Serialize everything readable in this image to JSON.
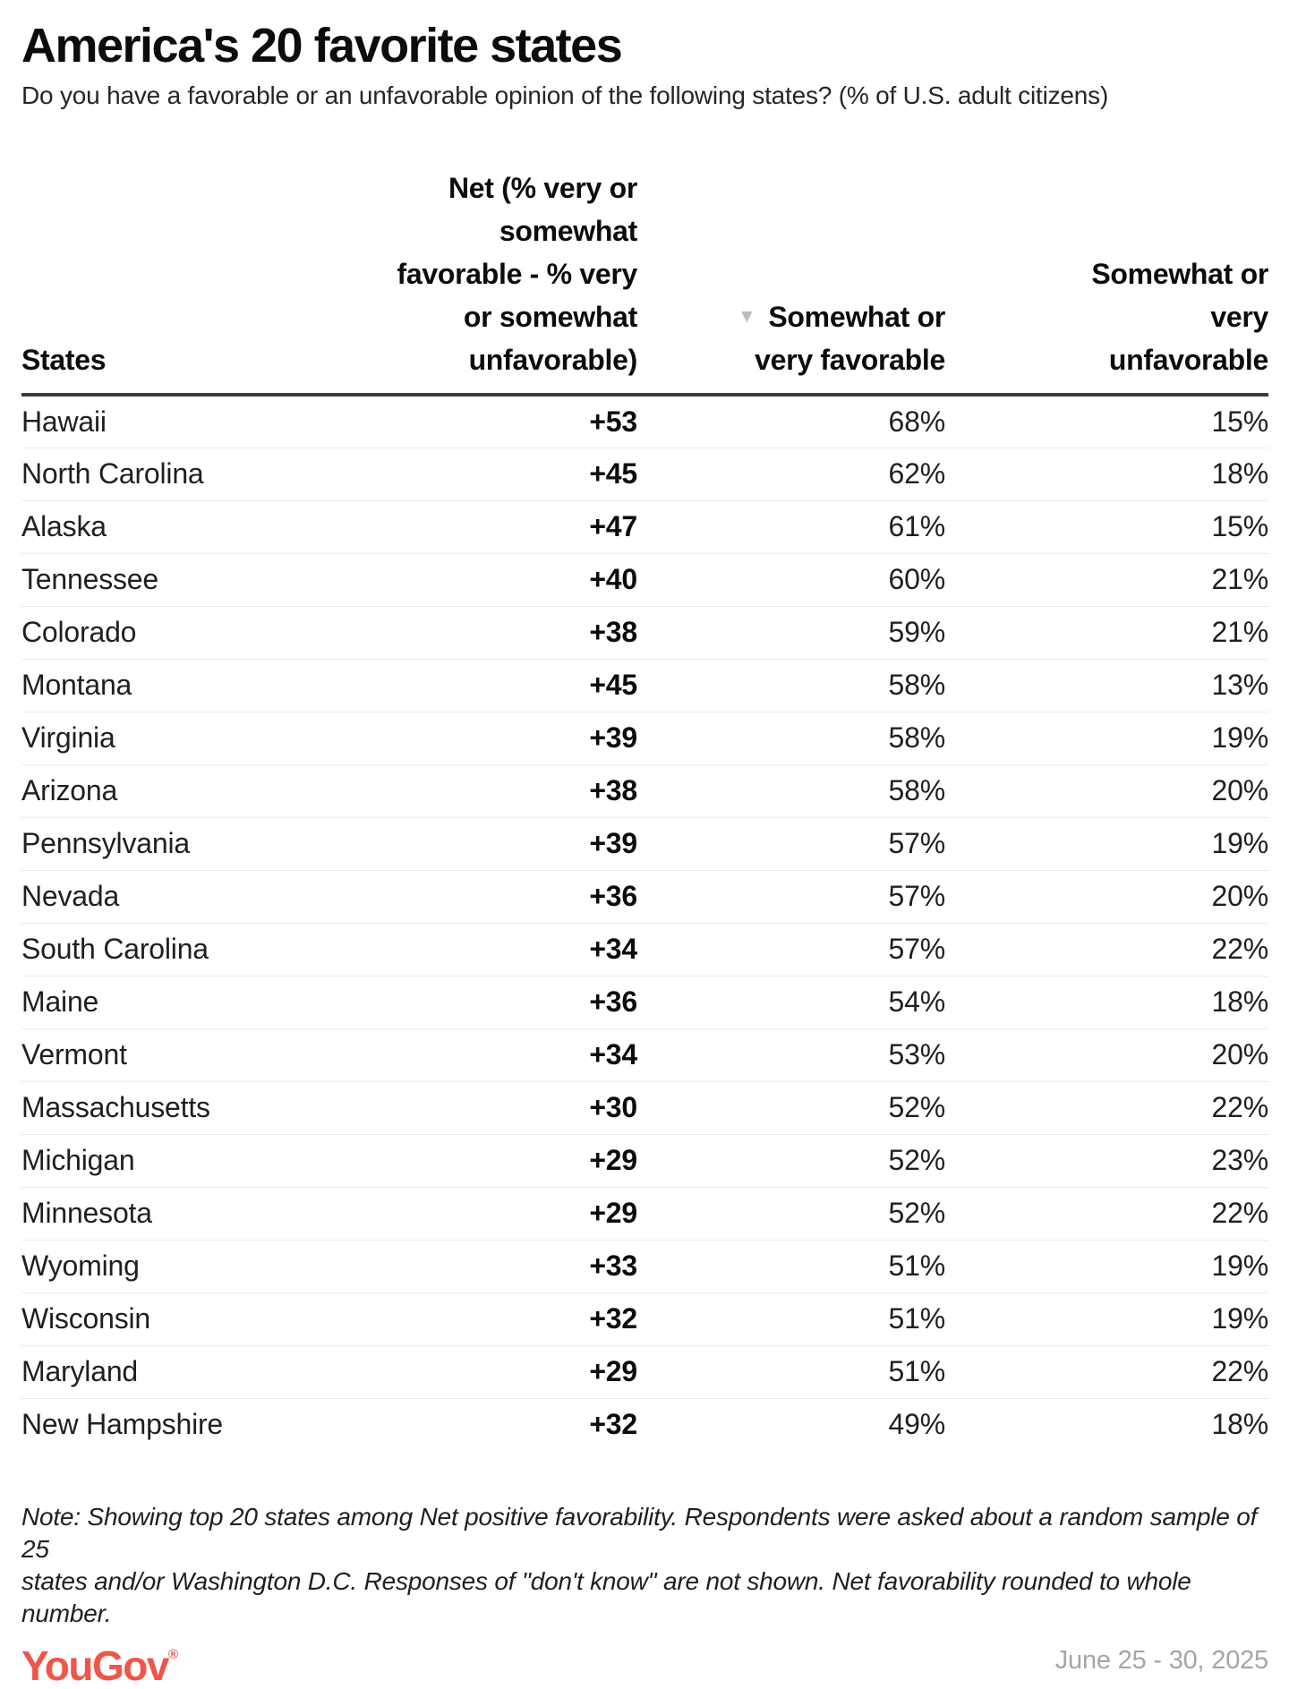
{
  "header": {
    "title": "America's 20 favorite states",
    "subtitle": "Do you have a favorable or an unfavorable opinion of the following states? (% of U.S. adult citizens)"
  },
  "table": {
    "columns": {
      "states": "States",
      "net": "Net (% very or\nsomewhat\nfavorable - % very\nor somewhat\nunfavorable)",
      "favorable": "Somewhat or\nvery favorable",
      "unfavorable": "Somewhat or\nvery\nunfavorable"
    },
    "sort_icon": "▼",
    "rows": [
      {
        "state": "Hawaii",
        "net": "+53",
        "favorable": "68%",
        "unfavorable": "15%"
      },
      {
        "state": "North Carolina",
        "net": "+45",
        "favorable": "62%",
        "unfavorable": "18%"
      },
      {
        "state": "Alaska",
        "net": "+47",
        "favorable": "61%",
        "unfavorable": "15%"
      },
      {
        "state": "Tennessee",
        "net": "+40",
        "favorable": "60%",
        "unfavorable": "21%"
      },
      {
        "state": "Colorado",
        "net": "+38",
        "favorable": "59%",
        "unfavorable": "21%"
      },
      {
        "state": "Montana",
        "net": "+45",
        "favorable": "58%",
        "unfavorable": "13%"
      },
      {
        "state": "Virginia",
        "net": "+39",
        "favorable": "58%",
        "unfavorable": "19%"
      },
      {
        "state": "Arizona",
        "net": "+38",
        "favorable": "58%",
        "unfavorable": "20%"
      },
      {
        "state": "Pennsylvania",
        "net": "+39",
        "favorable": "57%",
        "unfavorable": "19%"
      },
      {
        "state": "Nevada",
        "net": "+36",
        "favorable": "57%",
        "unfavorable": "20%"
      },
      {
        "state": "South Carolina",
        "net": "+34",
        "favorable": "57%",
        "unfavorable": "22%"
      },
      {
        "state": "Maine",
        "net": "+36",
        "favorable": "54%",
        "unfavorable": "18%"
      },
      {
        "state": "Vermont",
        "net": "+34",
        "favorable": "53%",
        "unfavorable": "20%"
      },
      {
        "state": "Massachusetts",
        "net": "+30",
        "favorable": "52%",
        "unfavorable": "22%"
      },
      {
        "state": "Michigan",
        "net": "+29",
        "favorable": "52%",
        "unfavorable": "23%"
      },
      {
        "state": "Minnesota",
        "net": "+29",
        "favorable": "52%",
        "unfavorable": "22%"
      },
      {
        "state": "Wyoming",
        "net": "+33",
        "favorable": "51%",
        "unfavorable": "19%"
      },
      {
        "state": "Wisconsin",
        "net": "+32",
        "favorable": "51%",
        "unfavorable": "19%"
      },
      {
        "state": "Maryland",
        "net": "+29",
        "favorable": "51%",
        "unfavorable": "22%"
      },
      {
        "state": "New Hampshire",
        "net": "+32",
        "favorable": "49%",
        "unfavorable": "18%"
      }
    ]
  },
  "footer": {
    "note": "Note: Showing top 20 states among Net positive favorability. Respondents were asked about a random sample of 25\nstates and/or Washington D.C. Responses of \"don't know\" are not shown. Net favorability rounded to whole number.",
    "brand": "YouGov",
    "registered": "®",
    "date": "June 25 - 30, 2025"
  },
  "colors": {
    "brand_logo": "#f0554a",
    "header_rule": "#3a3a3a",
    "row_separator": "#ebebeb",
    "sort_icon": "#bdbdbd",
    "date_text": "#a5a5a5"
  },
  "chart_data": {
    "type": "table",
    "title": "America's 20 favorite states",
    "subtitle": "Do you have a favorable or an unfavorable opinion of the following states? (% of U.S. adult citizens)",
    "columns": [
      "States",
      "Net (% very or somewhat favorable - % very or somewhat unfavorable)",
      "Somewhat or very favorable",
      "Somewhat or very unfavorable"
    ],
    "sorted_by": "Somewhat or very favorable (descending)",
    "rows": [
      [
        "Hawaii",
        53,
        68,
        15
      ],
      [
        "North Carolina",
        45,
        62,
        18
      ],
      [
        "Alaska",
        47,
        61,
        15
      ],
      [
        "Tennessee",
        40,
        60,
        21
      ],
      [
        "Colorado",
        38,
        59,
        21
      ],
      [
        "Montana",
        45,
        58,
        13
      ],
      [
        "Virginia",
        39,
        58,
        19
      ],
      [
        "Arizona",
        38,
        58,
        20
      ],
      [
        "Pennsylvania",
        39,
        57,
        19
      ],
      [
        "Nevada",
        36,
        57,
        20
      ],
      [
        "South Carolina",
        34,
        57,
        22
      ],
      [
        "Maine",
        36,
        54,
        18
      ],
      [
        "Vermont",
        34,
        53,
        20
      ],
      [
        "Massachusetts",
        30,
        52,
        22
      ],
      [
        "Michigan",
        29,
        52,
        23
      ],
      [
        "Minnesota",
        29,
        52,
        22
      ],
      [
        "Wyoming",
        33,
        51,
        19
      ],
      [
        "Wisconsin",
        32,
        51,
        19
      ],
      [
        "Maryland",
        29,
        51,
        22
      ],
      [
        "New Hampshire",
        32,
        49,
        18
      ]
    ]
  }
}
